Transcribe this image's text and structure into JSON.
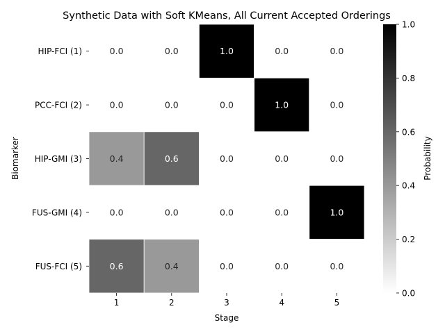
{
  "chart_data": {
    "type": "heatmap",
    "title": "Synthetic Data with Soft KMeans, All Current Accepted Orderings",
    "xlabel": "Stage",
    "ylabel": "Biomarker",
    "x_categories": [
      "1",
      "2",
      "3",
      "4",
      "5"
    ],
    "y_categories": [
      "HIP-FCI (1)",
      "PCC-FCI (2)",
      "HIP-GMI (3)",
      "FUS-GMI (4)",
      "FUS-FCI (5)"
    ],
    "values": [
      [
        0.0,
        0.0,
        1.0,
        0.0,
        0.0
      ],
      [
        0.0,
        0.0,
        0.0,
        1.0,
        0.0
      ],
      [
        0.4,
        0.6,
        0.0,
        0.0,
        0.0
      ],
      [
        0.0,
        0.0,
        0.0,
        0.0,
        1.0
      ],
      [
        0.6,
        0.4,
        0.0,
        0.0,
        0.0
      ]
    ],
    "colormap": "Greys",
    "vmin": 0.0,
    "vmax": 1.0,
    "colorbar": {
      "label": "Probability",
      "ticks": [
        "0.0",
        "0.2",
        "0.4",
        "0.6",
        "0.8",
        "1.0"
      ]
    },
    "annotations": true,
    "grid": false
  }
}
